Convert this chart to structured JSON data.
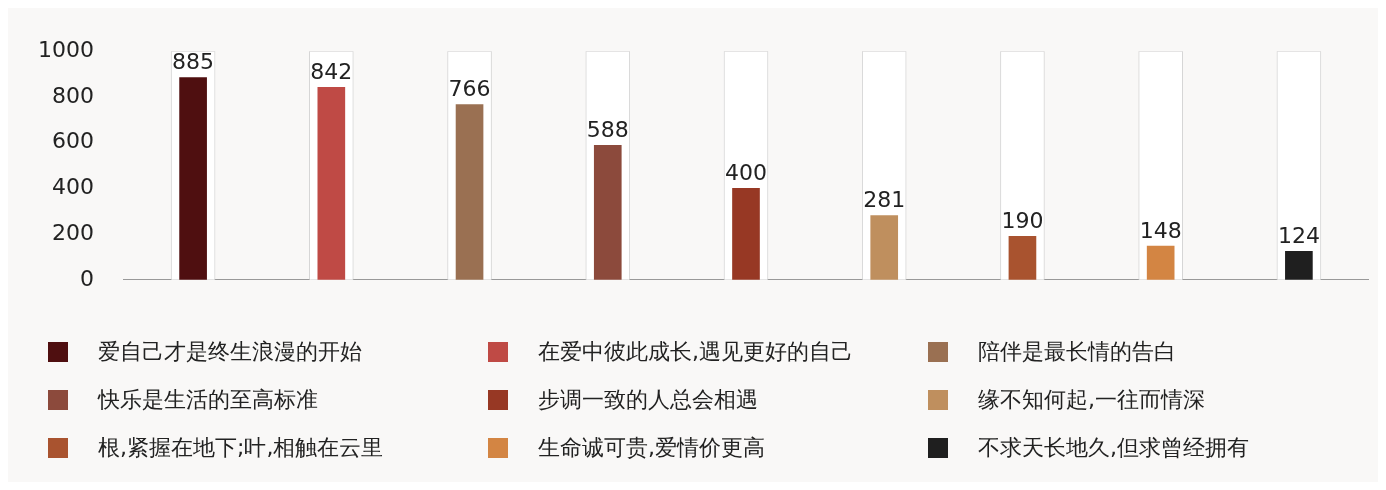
{
  "chart_data": {
    "type": "bar",
    "categories": [
      null,
      null,
      null,
      null,
      null,
      null,
      null,
      null,
      null
    ],
    "ylim": [
      0,
      1000
    ],
    "yticks": [
      0,
      200,
      400,
      600,
      800,
      1000
    ],
    "grid": false,
    "legend": "bottom",
    "series": [
      {
        "name": "爱自己才是终生浪漫的开始",
        "color": "#4f0f10",
        "values": [
          885,
          null,
          null,
          null,
          null,
          null,
          null,
          null,
          null
        ],
        "value_labels": [
          "885",
          null,
          null,
          null,
          null,
          null,
          null,
          null,
          null
        ]
      },
      {
        "name": "在爱中彼此成长,遇见更好的自己",
        "color": "#bf4a45",
        "values": [
          null,
          842,
          null,
          null,
          null,
          null,
          null,
          null,
          null
        ],
        "value_labels": [
          null,
          "842",
          null,
          null,
          null,
          null,
          null,
          null,
          null
        ]
      },
      {
        "name": "陪伴是最长情的告白",
        "color": "#9a7052",
        "values": [
          null,
          null,
          766,
          null,
          null,
          null,
          null,
          null,
          null
        ],
        "value_labels": [
          null,
          null,
          "766",
          null,
          null,
          null,
          null,
          null,
          null
        ]
      },
      {
        "name": "快乐是生活的至高标准",
        "color": "#8c4a3c",
        "values": [
          null,
          null,
          null,
          588,
          null,
          null,
          null,
          null,
          null
        ],
        "value_labels": [
          null,
          null,
          null,
          "588",
          null,
          null,
          null,
          null,
          null
        ]
      },
      {
        "name": "步调一致的人总会相遇",
        "color": "#973824",
        "values": [
          null,
          null,
          null,
          null,
          400,
          null,
          null,
          null,
          null
        ],
        "value_labels": [
          null,
          null,
          null,
          null,
          "400",
          null,
          null,
          null,
          null
        ]
      },
      {
        "name": "缘不知何起,一往而情深",
        "color": "#bf8f5e",
        "values": [
          null,
          null,
          null,
          null,
          null,
          281,
          null,
          null,
          null
        ],
        "value_labels": [
          null,
          null,
          null,
          null,
          null,
          "281",
          null,
          null,
          null
        ]
      },
      {
        "name": "根,紧握在地下;叶,相触在云里",
        "color": "#a9532f",
        "values": [
          null,
          null,
          null,
          null,
          null,
          null,
          190,
          null,
          null
        ],
        "value_labels": [
          null,
          null,
          null,
          null,
          null,
          null,
          "190",
          null,
          null
        ]
      },
      {
        "name": "生命诚可贵,爱情价更高",
        "color": "#d38543",
        "values": [
          null,
          null,
          null,
          null,
          null,
          null,
          null,
          148,
          null
        ],
        "value_labels": [
          null,
          null,
          null,
          null,
          null,
          null,
          null,
          "148",
          null
        ]
      },
      {
        "name": "不求天长地久,但求曾经拥有",
        "color": "#1f1f1f",
        "values": [
          null,
          null,
          null,
          null,
          null,
          null,
          null,
          null,
          124
        ],
        "value_labels": [
          null,
          null,
          null,
          null,
          null,
          null,
          null,
          null,
          "124"
        ]
      },
      {
        "color": "#ffffff",
        "values": [
          1000,
          1000,
          1000,
          1000,
          1000,
          1000,
          1000,
          1000,
          1000
        ]
      }
    ]
  }
}
